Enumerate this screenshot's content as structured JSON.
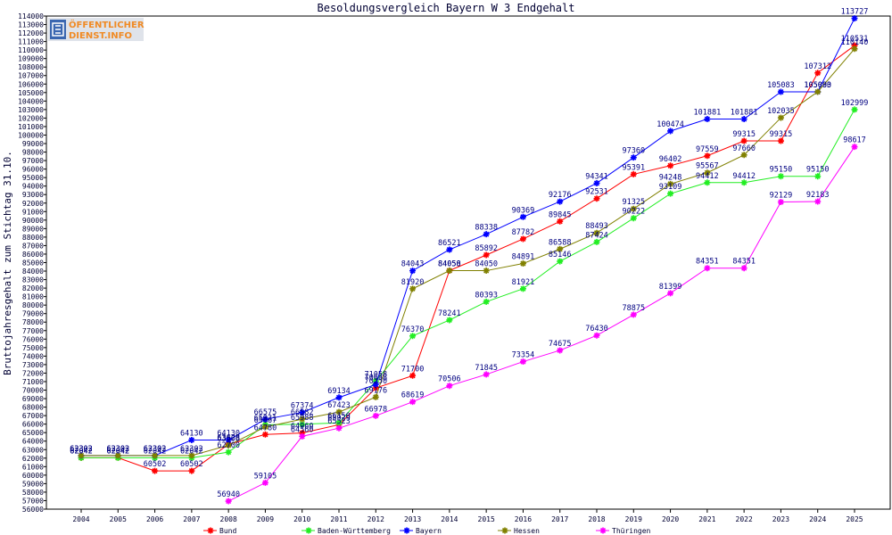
{
  "logo": {
    "line1": "ÖFFENTLICHER",
    "line2": "DIENST.INFO"
  },
  "chart_data": {
    "type": "line",
    "title": "Besoldungsvergleich Bayern W 3 Endgehalt",
    "xlabel": "",
    "ylabel": "Bruttojahresgehalt zum Stichtag 31.10.",
    "x": [
      2004,
      2005,
      2006,
      2007,
      2008,
      2009,
      2010,
      2011,
      2012,
      2013,
      2014,
      2015,
      2016,
      2017,
      2018,
      2019,
      2020,
      2021,
      2022,
      2023,
      2024,
      2025
    ],
    "ylim": [
      56000,
      114000
    ],
    "ytick_step": 1000,
    "grid": false,
    "legend": "bottom",
    "data_labels": true,
    "label_color": "#000080",
    "series": [
      {
        "name": "Bund",
        "color": "#ff0000",
        "values": [
          62042,
          62042,
          60502,
          60502,
          63628,
          64780,
          64960,
          65929,
          70250,
          71700,
          84058,
          85892,
          87782,
          89845,
          92531,
          95391,
          96402,
          97559,
          99315,
          99315,
          107312,
          110531
        ]
      },
      {
        "name": "Baden-Württemberg",
        "color": "#22ee22",
        "values": [
          62042,
          62042,
          62042,
          62042,
          62700,
          65931,
          65988,
          66150,
          71058,
          76370,
          78241,
          80393,
          81921,
          85146,
          87424,
          90222,
          93109,
          94412,
          94412,
          95150,
          95150,
          102999
        ]
      },
      {
        "name": "Bayern",
        "color": "#0000ff",
        "values": [
          62302,
          62302,
          62302,
          64130,
          64130,
          66575,
          67374,
          69134,
          70658,
          84043,
          86521,
          88338,
          90369,
          92176,
          94341,
          97360,
          100474,
          101881,
          101881,
          105083,
          105083,
          113727
        ]
      },
      {
        "name": "Hessen",
        "color": "#808000",
        "values": [
          62302,
          62302,
          62302,
          62302,
          63508,
          65667,
          66582,
          67423,
          69176,
          81920,
          84050,
          84050,
          84891,
          86588,
          88493,
          91325,
          94248,
          95567,
          97660,
          102035,
          105090,
          110140
        ]
      },
      {
        "name": "Thüringen",
        "color": "#ff00ff",
        "values": [
          null,
          null,
          null,
          null,
          56940,
          59105,
          64560,
          65523,
          66978,
          68619,
          70506,
          71845,
          73354,
          74675,
          76430,
          78875,
          81399,
          84351,
          84351,
          92129,
          92183,
          98617
        ]
      }
    ]
  }
}
